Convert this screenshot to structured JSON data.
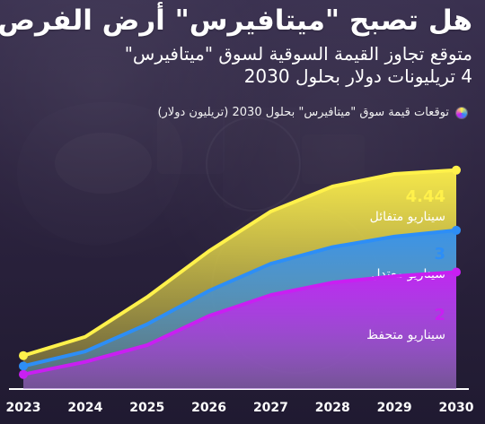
{
  "header": {
    "title": "هل تصبح \"ميتافيرس\" أرض الفرص؟",
    "subtitle_line1": "متوقع تجاوز القيمة السوقية لسوق \"ميتافيرس\"",
    "subtitle_line2": "4 تريليونات دولار بحلول 2030"
  },
  "legend": {
    "text": "توقعات قيمة سوق \"ميتافيرس\" بحلول 2030 (تريليون دولار)"
  },
  "colors": {
    "optimistic": "#fff14b",
    "moderate": "#2d8ef6",
    "conservative": "#c91ff2",
    "axis": "#ffffff"
  },
  "chart_data": {
    "type": "area",
    "categories": [
      "2023",
      "2024",
      "2025",
      "2026",
      "2027",
      "2028",
      "2029",
      "2030"
    ],
    "x": [
      2023,
      2024,
      2025,
      2026,
      2027,
      2028,
      2029,
      2030
    ],
    "series": [
      {
        "name": "سيناريو متفائل",
        "label_value": "4.44",
        "color": "#fff14b",
        "values": [
          0.0,
          0.45,
          1.4,
          2.5,
          3.45,
          4.05,
          4.35,
          4.44
        ]
      },
      {
        "name": "سيناريو معتدل",
        "label_value": "3",
        "color": "#2d8ef6",
        "values": [
          -0.25,
          0.1,
          0.75,
          1.55,
          2.2,
          2.6,
          2.85,
          3.0
        ]
      },
      {
        "name": "سيناريو متحفظ",
        "label_value": "2",
        "color": "#c91ff2",
        "values": [
          -0.45,
          -0.15,
          0.25,
          0.95,
          1.45,
          1.75,
          1.9,
          2.0
        ]
      }
    ],
    "xlabel": "",
    "ylabel": "",
    "ylim": [
      -0.8,
      4.5
    ],
    "grid": false,
    "legend": "top-right"
  }
}
